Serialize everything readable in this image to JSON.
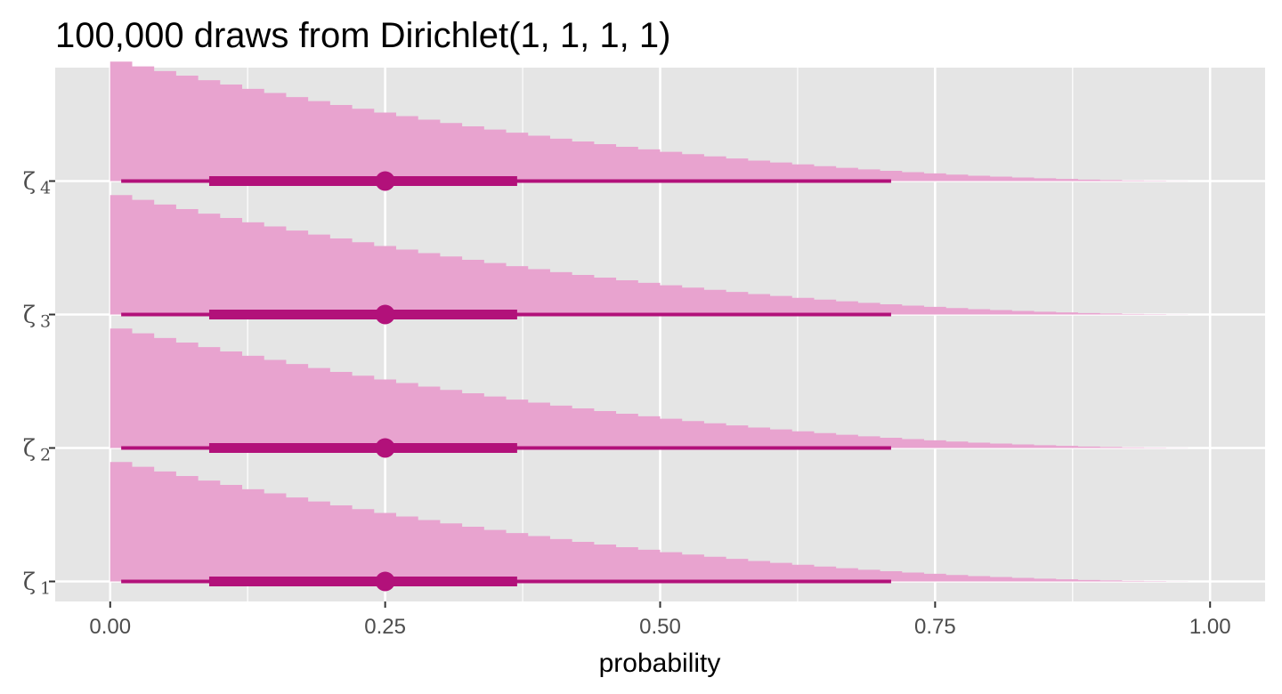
{
  "chart_data": {
    "type": "histogram-interval",
    "title": "100,000 draws from Dirichlet(1, 1, 1, 1)",
    "subtitle": "",
    "xlabel": "probability",
    "ylabel": "",
    "xlim": [
      -0.05,
      1.05
    ],
    "xticks": [
      0,
      0.25,
      0.5,
      0.75,
      1
    ],
    "xtick_labels": [
      "0.00",
      "0.25",
      "0.50",
      "0.75",
      "1.00"
    ],
    "x_minor_ticks": [
      0.125,
      0.375,
      0.625,
      0.875
    ],
    "grid": true,
    "legend": "none",
    "colors": {
      "panel_background": "#e5e5e5",
      "grid": "#ffffff",
      "fill": "#e8a3cf",
      "interval": "#b2117a",
      "tick_text": "#4d4d4d",
      "text": "#000000"
    },
    "histogram": {
      "bin_width": 0.02,
      "shape": "triangular density 3(1-x)^2, 0 to 1",
      "relative_height_at_zero": 1.0
    },
    "series": [
      {
        "label_base": "ζ",
        "label_sub": "1",
        "point": 0.25,
        "inner_interval": [
          0.09,
          0.37
        ],
        "outer_interval": [
          0.01,
          0.71
        ]
      },
      {
        "label_base": "ζ",
        "label_sub": "2",
        "point": 0.25,
        "inner_interval": [
          0.09,
          0.37
        ],
        "outer_interval": [
          0.01,
          0.71
        ]
      },
      {
        "label_base": "ζ",
        "label_sub": "3",
        "point": 0.25,
        "inner_interval": [
          0.09,
          0.37
        ],
        "outer_interval": [
          0.01,
          0.71
        ]
      },
      {
        "label_base": "ζ",
        "label_sub": "4",
        "point": 0.25,
        "inner_interval": [
          0.09,
          0.37
        ],
        "outer_interval": [
          0.01,
          0.71
        ]
      }
    ]
  }
}
